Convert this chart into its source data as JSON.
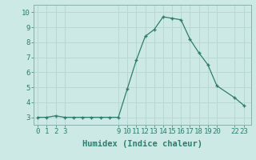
{
  "x": [
    0,
    1,
    2,
    3,
    4,
    5,
    6,
    7,
    8,
    9,
    10,
    11,
    12,
    13,
    14,
    15,
    16,
    17,
    18,
    19,
    20,
    22,
    23
  ],
  "y": [
    3.0,
    3.0,
    3.1,
    3.0,
    3.0,
    3.0,
    3.0,
    3.0,
    3.0,
    3.0,
    4.9,
    6.8,
    8.4,
    8.85,
    9.7,
    9.6,
    9.5,
    8.2,
    7.3,
    6.5,
    5.1,
    4.3,
    3.8
  ],
  "xlabel": "Humidex (Indice chaleur)",
  "xticks": [
    0,
    1,
    2,
    3,
    9,
    10,
    11,
    12,
    13,
    14,
    15,
    16,
    17,
    18,
    19,
    20,
    22,
    23
  ],
  "yticks": [
    3,
    4,
    5,
    6,
    7,
    8,
    9,
    10
  ],
  "ylim": [
    2.5,
    10.5
  ],
  "xlim": [
    -0.5,
    23.8
  ],
  "line_color": "#2e7d6e",
  "marker_color": "#2e7d6e",
  "bg_color": "#cce9e5",
  "grid_color": "#b8d8d4",
  "spine_color": "#8ab0ac",
  "tick_color": "#2e7d6e",
  "label_color": "#2e7d6e",
  "font_size": 7.5
}
